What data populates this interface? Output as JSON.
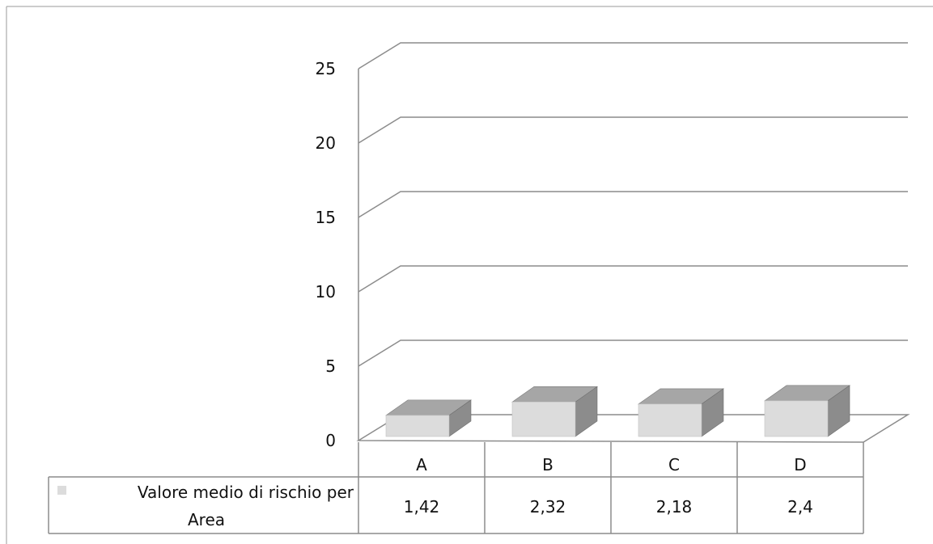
{
  "chart_data": {
    "type": "bar",
    "style": "3d-column-with-data-table",
    "categories": [
      "A",
      "B",
      "C",
      "D"
    ],
    "series": [
      {
        "name": "Valore medio di rischio per Area",
        "values": [
          1.42,
          2.32,
          2.18,
          2.4
        ]
      }
    ],
    "data_labels": [
      "1,42",
      "2,32",
      "2,18",
      "2,4"
    ],
    "y_ticks": [
      "0",
      "5",
      "10",
      "15",
      "20",
      "25"
    ],
    "ylim": [
      0,
      25
    ],
    "grid": true,
    "legend": "data-table-row",
    "series_label_lines": [
      "Valore medio di rischio per",
      "Area"
    ],
    "colors": {
      "bar_front": "#dcdcdc",
      "bar_top": "#a6a6a6",
      "bar_side": "#8c8c8c",
      "grid": "#8c8c8c",
      "legend_key": "#dcdcdc"
    }
  }
}
